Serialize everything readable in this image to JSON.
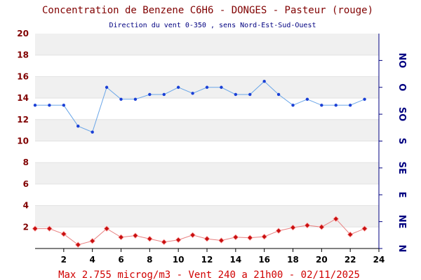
{
  "title": "Concentration de Benzene C6H6  -   DONGES - Pasteur (rouge)",
  "subtitle": "Direction du vent 0-350 , sens Nord-Est-Sud-Ouest",
  "footer": "Max 2.755 microg/m3 - Vent 240  a 21h00 - 02/11/2025",
  "colors": {
    "title": "#800000",
    "subtitle": "#000080",
    "footer": "#d00000",
    "left_axis": "#800000",
    "bottom_axis": "#000000",
    "right_axis": "#000080",
    "band": "#f0f0f0",
    "wind_line": "#6aa6e8",
    "wind_marker": "#1a3fd6",
    "benzene_line": "#e88080",
    "benzene_marker": "#c81010"
  },
  "chart_data": {
    "type": "line",
    "x": [
      0,
      1,
      2,
      3,
      4,
      5,
      6,
      7,
      8,
      9,
      10,
      11,
      12,
      13,
      14,
      15,
      16,
      17,
      18,
      19,
      20,
      21,
      22,
      23
    ],
    "xlim": [
      0,
      24
    ],
    "x_ticks": [
      "2",
      "4",
      "6",
      "8",
      "10",
      "12",
      "14",
      "16",
      "18",
      "20",
      "22",
      "24"
    ],
    "left_axis": {
      "ylim": [
        0,
        20
      ],
      "ticks": [
        "2",
        "4",
        "6",
        "8",
        "10",
        "12",
        "14",
        "16",
        "18",
        "20"
      ]
    },
    "right_axis": {
      "ylim": [
        0,
        360
      ],
      "ticks": [
        "N",
        "NE",
        "E",
        "SE",
        "S",
        "SO",
        "O",
        "NO"
      ]
    },
    "grid": "horizontal bands",
    "series": [
      {
        "axis": "right",
        "style": "wind",
        "values": [
          240,
          240,
          240,
          205,
          195,
          270,
          250,
          250,
          258,
          258,
          270,
          260,
          270,
          270,
          258,
          258,
          280,
          258,
          240,
          250,
          240,
          240,
          240,
          250
        ]
      },
      {
        "axis": "left",
        "style": "benzene",
        "values": [
          1.85,
          1.85,
          1.35,
          0.35,
          0.7,
          1.85,
          1.05,
          1.2,
          0.9,
          0.6,
          0.8,
          1.25,
          0.9,
          0.75,
          1.05,
          1.0,
          1.1,
          1.65,
          1.95,
          2.15,
          2.0,
          2.755,
          1.3,
          1.85
        ]
      }
    ]
  }
}
